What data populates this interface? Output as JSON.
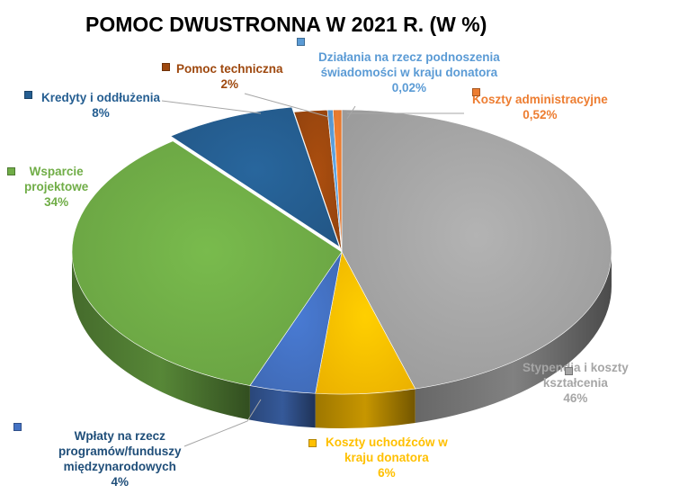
{
  "chart_data": {
    "type": "pie",
    "title": "POMOC DWUSTRONNA W 2021 R. (W %)",
    "style": "3d-exploded",
    "legend": "none",
    "slices": [
      {
        "label_lines": [
          "Stypendia i koszty",
          "kształcenia"
        ],
        "value_text": "46%",
        "value": 46,
        "color": "#A6A6A6",
        "label_color": "#A6A6A6"
      },
      {
        "label_lines": [
          "Koszty uchodźców w",
          "kraju donatora"
        ],
        "value_text": "6%",
        "value": 6,
        "color": "#FFC000",
        "label_color": "#FFC000"
      },
      {
        "label_lines": [
          "Wpłaty  na rzecz",
          "programów/funduszy",
          "międzynarodowych"
        ],
        "value_text": "4%",
        "value": 4,
        "color": "#4472C4",
        "label_color": "#1F4E79"
      },
      {
        "label_lines": [
          "Wsparcie",
          "projektowe"
        ],
        "value_text": "34%",
        "value": 34,
        "color": "#70AD47",
        "label_color": "#70AD47"
      },
      {
        "label_lines": [
          "Kredyty i oddłużenia"
        ],
        "value_text": "8%",
        "value": 8,
        "color": "#255E91",
        "label_color": "#255E91"
      },
      {
        "label_lines": [
          "Pomoc techniczna"
        ],
        "value_text": "2%",
        "value": 2,
        "color": "#9E480E",
        "label_color": "#9E480E"
      },
      {
        "label_lines": [
          "Działania na rzecz podnoszenia",
          "świadomości w kraju donatora"
        ],
        "value_text": "0,02%",
        "value": 0.02,
        "color": "#5B9BD5",
        "label_color": "#5B9BD5"
      },
      {
        "label_lines": [
          "Koszty administracyjne"
        ],
        "value_text": "0,52%",
        "value": 0.52,
        "color": "#ED7D31",
        "label_color": "#ED7D31"
      }
    ]
  }
}
